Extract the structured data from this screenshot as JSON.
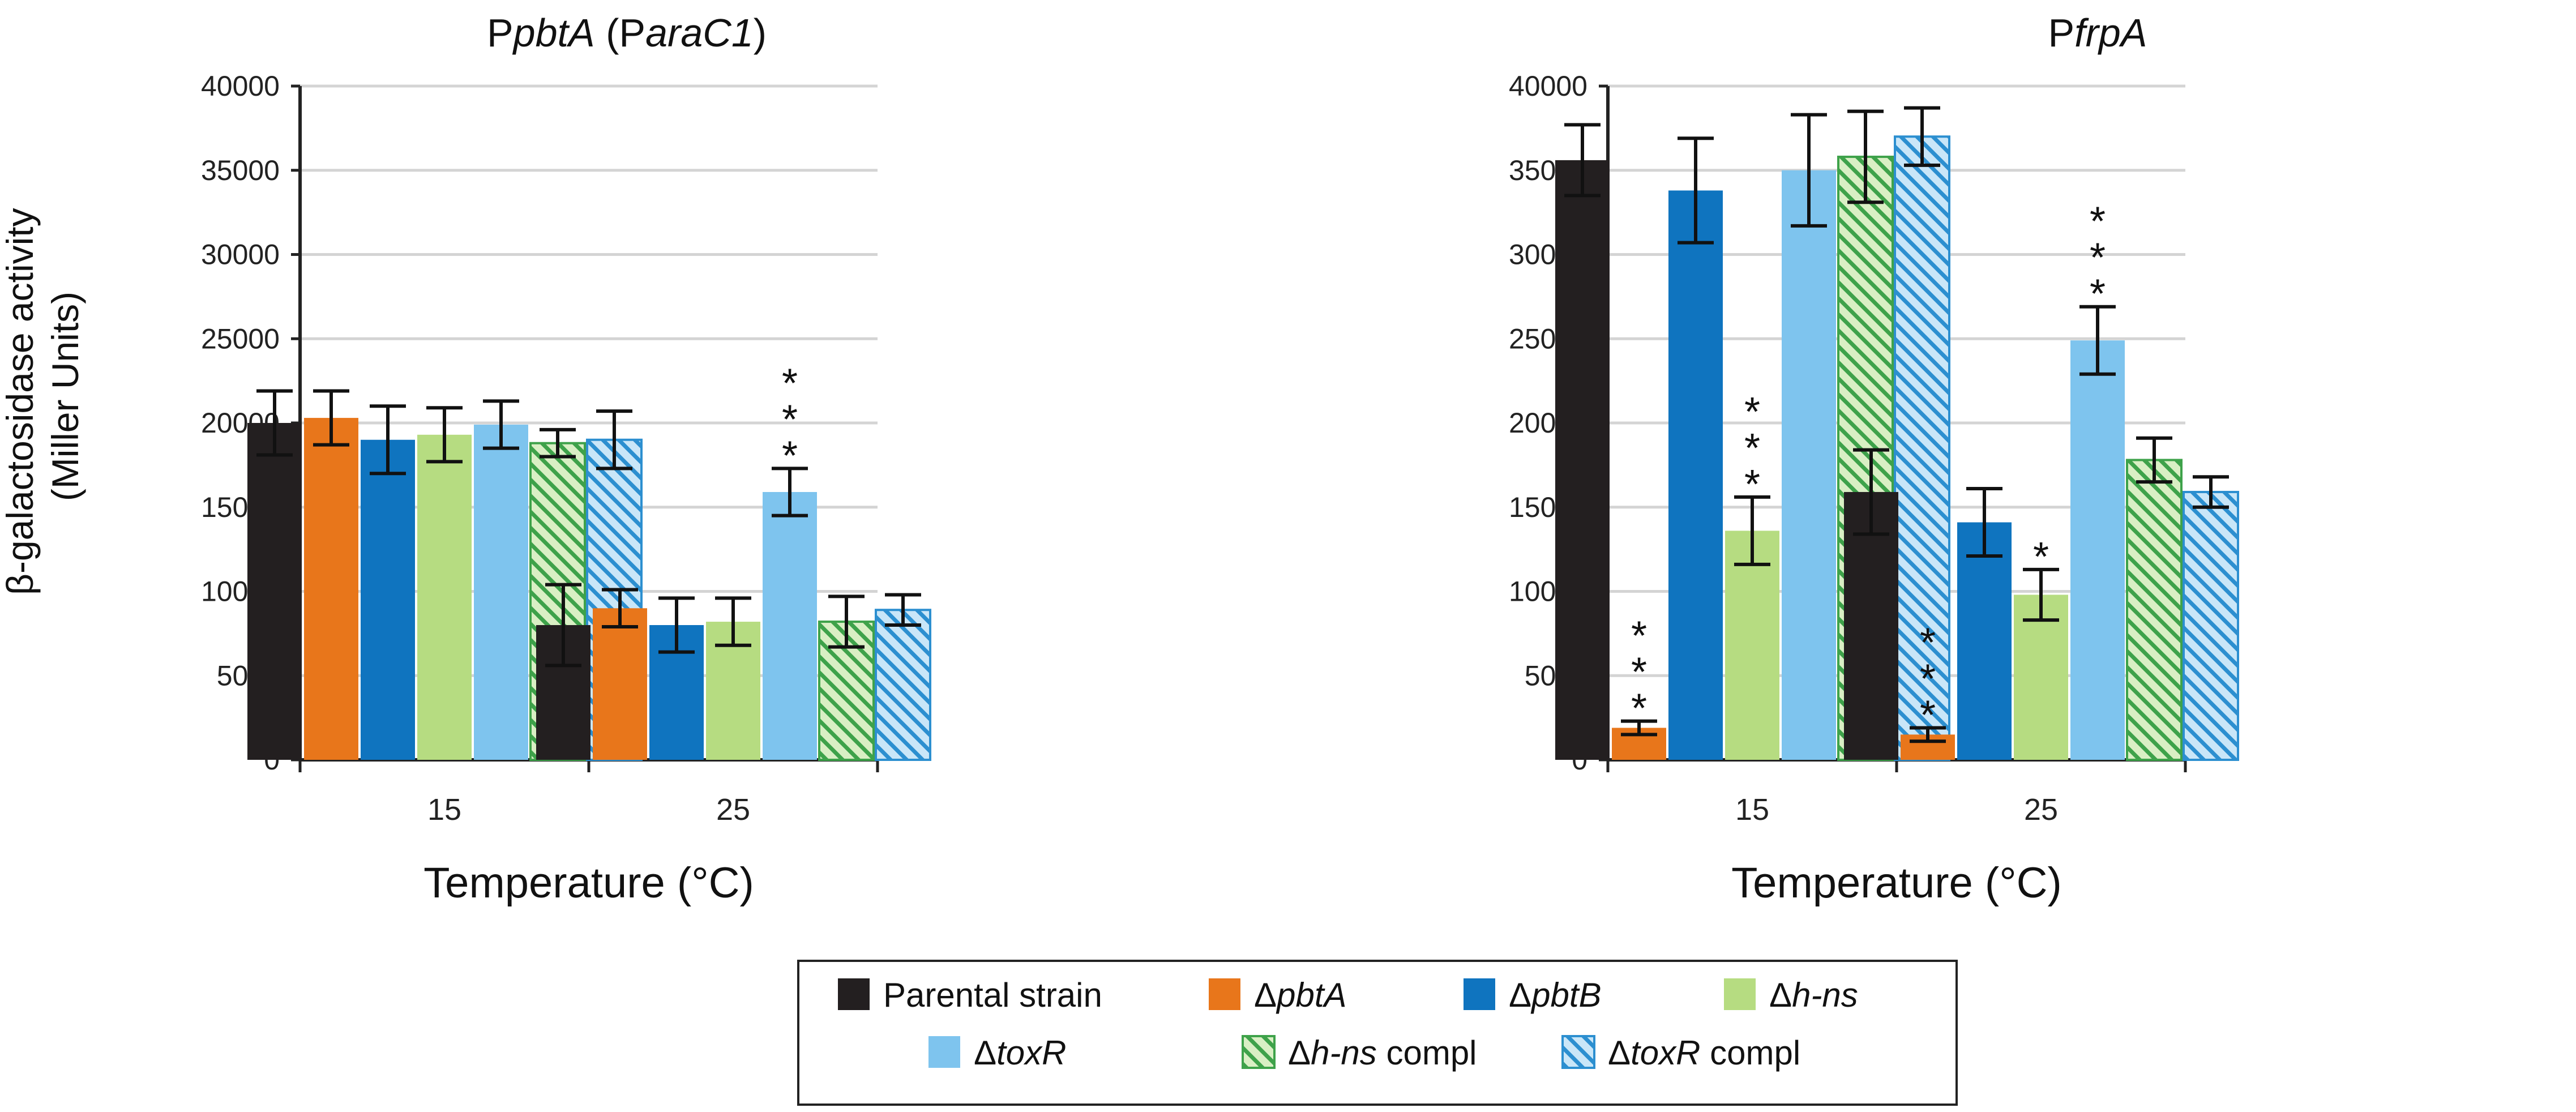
{
  "figure": {
    "ylabel_line1": "β-galactosidase activity",
    "ylabel_line2": "(Miller Units)"
  },
  "legend": {
    "items": [
      {
        "key": "parental",
        "prefix": "",
        "name": "Parental strain",
        "suffix": "",
        "color": "#231f20",
        "pattern": "solid"
      },
      {
        "key": "pbtA",
        "prefix": "Δ",
        "name": "pbtA",
        "suffix": "",
        "color": "#e8761b",
        "pattern": "solid"
      },
      {
        "key": "pbtB",
        "prefix": "Δ",
        "name": "pbtB",
        "suffix": "",
        "color": "#0f74bf",
        "pattern": "solid"
      },
      {
        "key": "hns",
        "prefix": "Δ",
        "name": "h-ns",
        "suffix": "",
        "color": "#b6dc81",
        "pattern": "solid"
      },
      {
        "key": "toxR",
        "prefix": "Δ",
        "name": "toxR",
        "suffix": "",
        "color": "#7ec4ee",
        "pattern": "solid"
      },
      {
        "key": "hns_compl",
        "prefix": "Δ",
        "name": "h-ns",
        "suffix": " compl",
        "color": "#8fd16b",
        "pattern": "hatch"
      },
      {
        "key": "toxR_compl",
        "prefix": "Δ",
        "name": "toxR",
        "suffix": " compl",
        "color": "#7ec4ee",
        "pattern": "hatch"
      }
    ]
  },
  "chart_data": [
    {
      "type": "bar",
      "title_parts": [
        {
          "text": "P",
          "italic": false
        },
        {
          "text": "pbtA",
          "italic": true
        },
        {
          "text": " (P",
          "italic": false
        },
        {
          "text": "araC1",
          "italic": true
        },
        {
          "text": ")",
          "italic": false
        }
      ],
      "xlabel": "Temperature (°C)",
      "ylabel": "β-galactosidase activity (Miller Units)",
      "categories": [
        "15",
        "25"
      ],
      "ylim": [
        0,
        40000
      ],
      "yticks": [
        0,
        5000,
        10000,
        15000,
        20000,
        25000,
        30000,
        35000,
        40000
      ],
      "grid": true,
      "series": [
        {
          "name": "Parental strain",
          "values": [
            20000,
            8000
          ],
          "errors": [
            1900,
            2400
          ],
          "sig": [
            "",
            ""
          ]
        },
        {
          "name": "ΔpbtA",
          "values": [
            20300,
            9000
          ],
          "errors": [
            1600,
            1100
          ],
          "sig": [
            "",
            ""
          ]
        },
        {
          "name": "ΔpbtB",
          "values": [
            19000,
            8000
          ],
          "errors": [
            2000,
            1600
          ],
          "sig": [
            "",
            ""
          ]
        },
        {
          "name": "Δh-ns",
          "values": [
            19300,
            8200
          ],
          "errors": [
            1600,
            1400
          ],
          "sig": [
            "",
            ""
          ]
        },
        {
          "name": "ΔtoxR",
          "values": [
            19900,
            15900
          ],
          "errors": [
            1400,
            1400
          ],
          "sig": [
            "",
            "***"
          ]
        },
        {
          "name": "Δh-ns compl",
          "values": [
            18800,
            8200
          ],
          "errors": [
            800,
            1500
          ],
          "sig": [
            "",
            ""
          ]
        },
        {
          "name": "ΔtoxR compl",
          "values": [
            19000,
            8900
          ],
          "errors": [
            1700,
            900
          ],
          "sig": [
            "",
            ""
          ]
        }
      ]
    },
    {
      "type": "bar",
      "title_parts": [
        {
          "text": "P",
          "italic": false
        },
        {
          "text": "frpA",
          "italic": true
        }
      ],
      "xlabel": "Temperature (°C)",
      "ylabel": "β-galactosidase activity (Miller Units)",
      "categories": [
        "15",
        "25"
      ],
      "ylim": [
        0,
        40000
      ],
      "yticks": [
        0,
        5000,
        10000,
        15000,
        20000,
        25000,
        30000,
        35000,
        40000
      ],
      "grid": true,
      "series": [
        {
          "name": "Parental strain",
          "values": [
            35600,
            15900
          ],
          "errors": [
            2100,
            2500
          ],
          "sig": [
            "",
            ""
          ]
        },
        {
          "name": "ΔpbtA",
          "values": [
            1900,
            1500
          ],
          "errors": [
            400,
            400
          ],
          "sig": [
            "***",
            "***"
          ]
        },
        {
          "name": "ΔpbtB",
          "values": [
            33800,
            14100
          ],
          "errors": [
            3100,
            2000
          ],
          "sig": [
            "",
            ""
          ]
        },
        {
          "name": "Δh-ns",
          "values": [
            13600,
            9800
          ],
          "errors": [
            2000,
            1500
          ],
          "sig": [
            "***",
            "*"
          ]
        },
        {
          "name": "ΔtoxR",
          "values": [
            35000,
            24900
          ],
          "errors": [
            3300,
            2000
          ],
          "sig": [
            "",
            "***"
          ]
        },
        {
          "name": "Δh-ns compl",
          "values": [
            35800,
            17800
          ],
          "errors": [
            2700,
            1300
          ],
          "sig": [
            "",
            ""
          ]
        },
        {
          "name": "ΔtoxR compl",
          "values": [
            37000,
            15900
          ],
          "errors": [
            1700,
            900
          ],
          "sig": [
            "",
            ""
          ]
        }
      ]
    }
  ]
}
